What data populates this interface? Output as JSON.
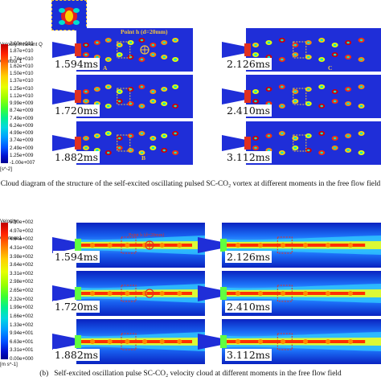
{
  "part_a": {
    "legend": {
      "title_line1": "Velocity.Invariant Q",
      "title_line2": "Contour 1",
      "labels": [
        "2.00e+010",
        "1.87e+010",
        "1.74e+010",
        "1.62e+010",
        "1.50e+010",
        "1.37e+010",
        "1.25e+010",
        "1.12e+010",
        "9.99e+009",
        "8.74e+009",
        "7.49e+009",
        "6.24e+009",
        "4.99e+009",
        "3.74e+009",
        "2.49e+009",
        "1.25e+009",
        "-1.00e+007"
      ],
      "unit": "[s^-2]"
    },
    "times_left": [
      "1.594ms",
      "1.720ms",
      "1.882ms"
    ],
    "times_right": [
      "2.126ms",
      "2.410ms",
      "3.112ms"
    ],
    "annotations": {
      "point_label": "Point h (d=20mm)",
      "label_a": "A",
      "label_b": "B",
      "label_c": "C"
    },
    "caption": "Cloud diagram of the structure of the self-excited oscillating pulsed SC-CO₂ vortex at different moments in the free flow field"
  },
  "part_b": {
    "legend": {
      "title_line1": "Velocity",
      "title_line2": "Contour 1",
      "labels": [
        "5.30e+002",
        "4.97e+002",
        "4.64e+002",
        "4.31e+002",
        "3.98e+002",
        "3.64e+002",
        "3.31e+002",
        "2.98e+002",
        "2.65e+002",
        "2.32e+002",
        "1.99e+002",
        "1.66e+002",
        "1.33e+002",
        "9.94e+001",
        "6.63e+001",
        "3.31e+001",
        "0.00e+000"
      ],
      "unit": "[m s^-1]"
    },
    "times_left": [
      "1.594ms",
      "1.720ms",
      "1.882ms"
    ],
    "times_right": [
      "2.126ms",
      "2.410ms",
      "3.112ms"
    ],
    "annotations": {
      "point_label": "Point h (d=20mm)"
    },
    "caption_prefix": "(b)",
    "caption": "Self-excited oscillation pulse SC-CO₂ velocity cloud at different moments in the free flow field"
  },
  "colors": {
    "rainbow": [
      "#d00000",
      "#ff3000",
      "#ff8a00",
      "#ffd000",
      "#e8ff00",
      "#a0ff00",
      "#40ff20",
      "#00f080",
      "#00e0d0",
      "#00b0ff",
      "#0060ff",
      "#0010e0",
      "#0000b0"
    ],
    "highlight": "#f3c43b"
  }
}
